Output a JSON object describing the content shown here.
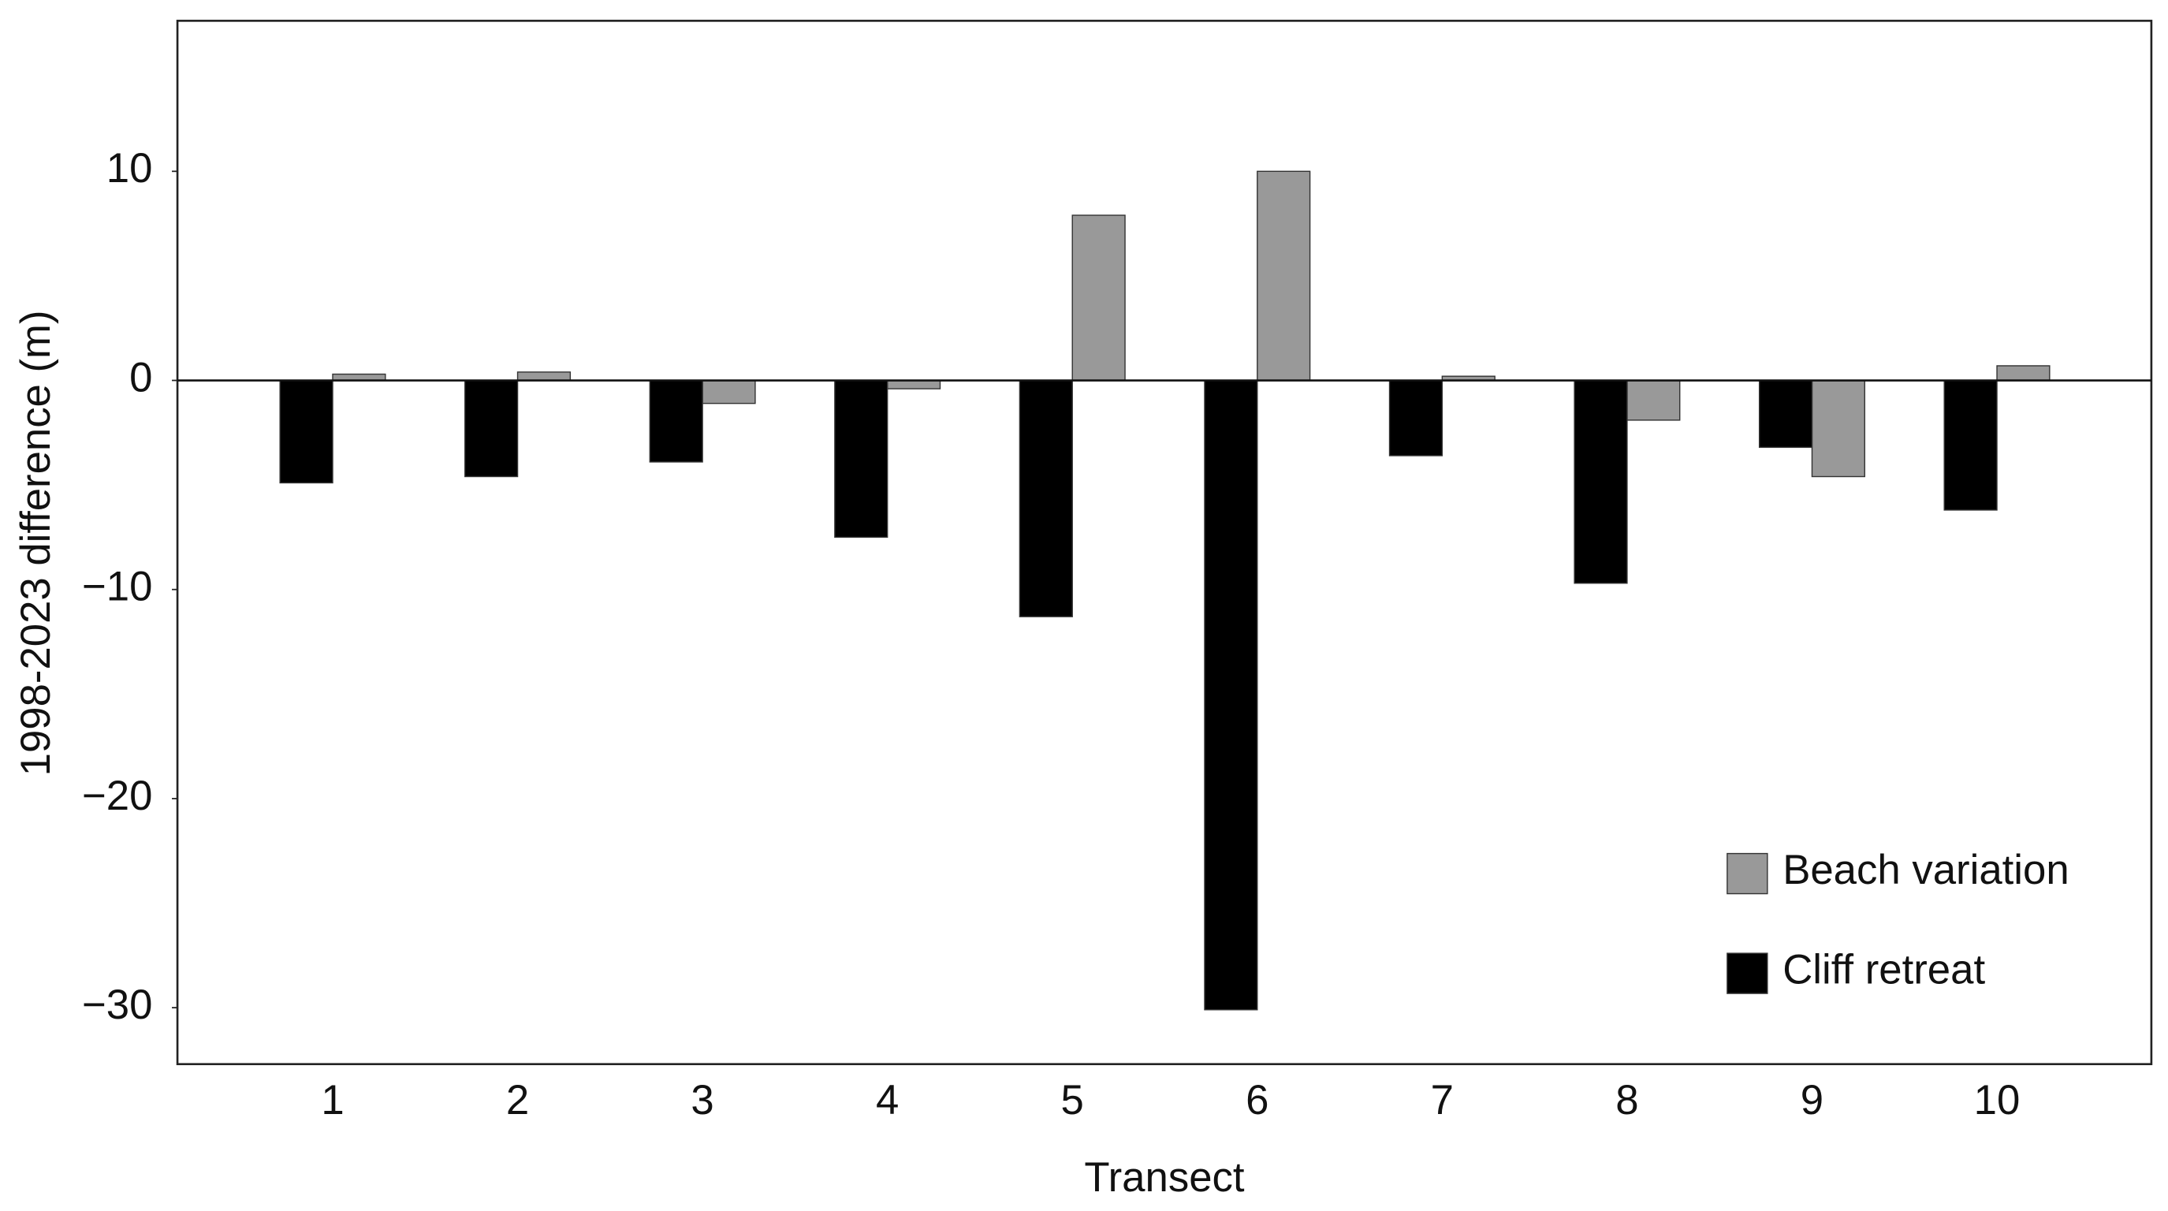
{
  "chart_data": {
    "type": "bar",
    "xlabel": "Transect",
    "ylabel": "1998-2023 difference (m)",
    "categories": [
      "1",
      "2",
      "3",
      "4",
      "5",
      "6",
      "7",
      "8",
      "9",
      "10"
    ],
    "series": [
      {
        "name": "Beach variation",
        "color": "#999999",
        "values": [
          0.3,
          0.4,
          -1.1,
          -0.4,
          7.9,
          10.0,
          0.2,
          -1.9,
          -4.6,
          0.7
        ]
      },
      {
        "name": "Cliff retreat",
        "color": "#000000",
        "values": [
          -4.9,
          -4.6,
          -3.9,
          -7.5,
          -11.3,
          -30.1,
          -3.6,
          -9.7,
          -3.2,
          -6.2
        ]
      }
    ],
    "ylim": [
      -32.7,
      17.2
    ],
    "yticks": [
      {
        "value": -30,
        "label": "−30"
      },
      {
        "value": -20,
        "label": "−20"
      },
      {
        "value": -10,
        "label": "−10"
      },
      0,
      10
    ],
    "grid": false,
    "legend": "lower right"
  }
}
